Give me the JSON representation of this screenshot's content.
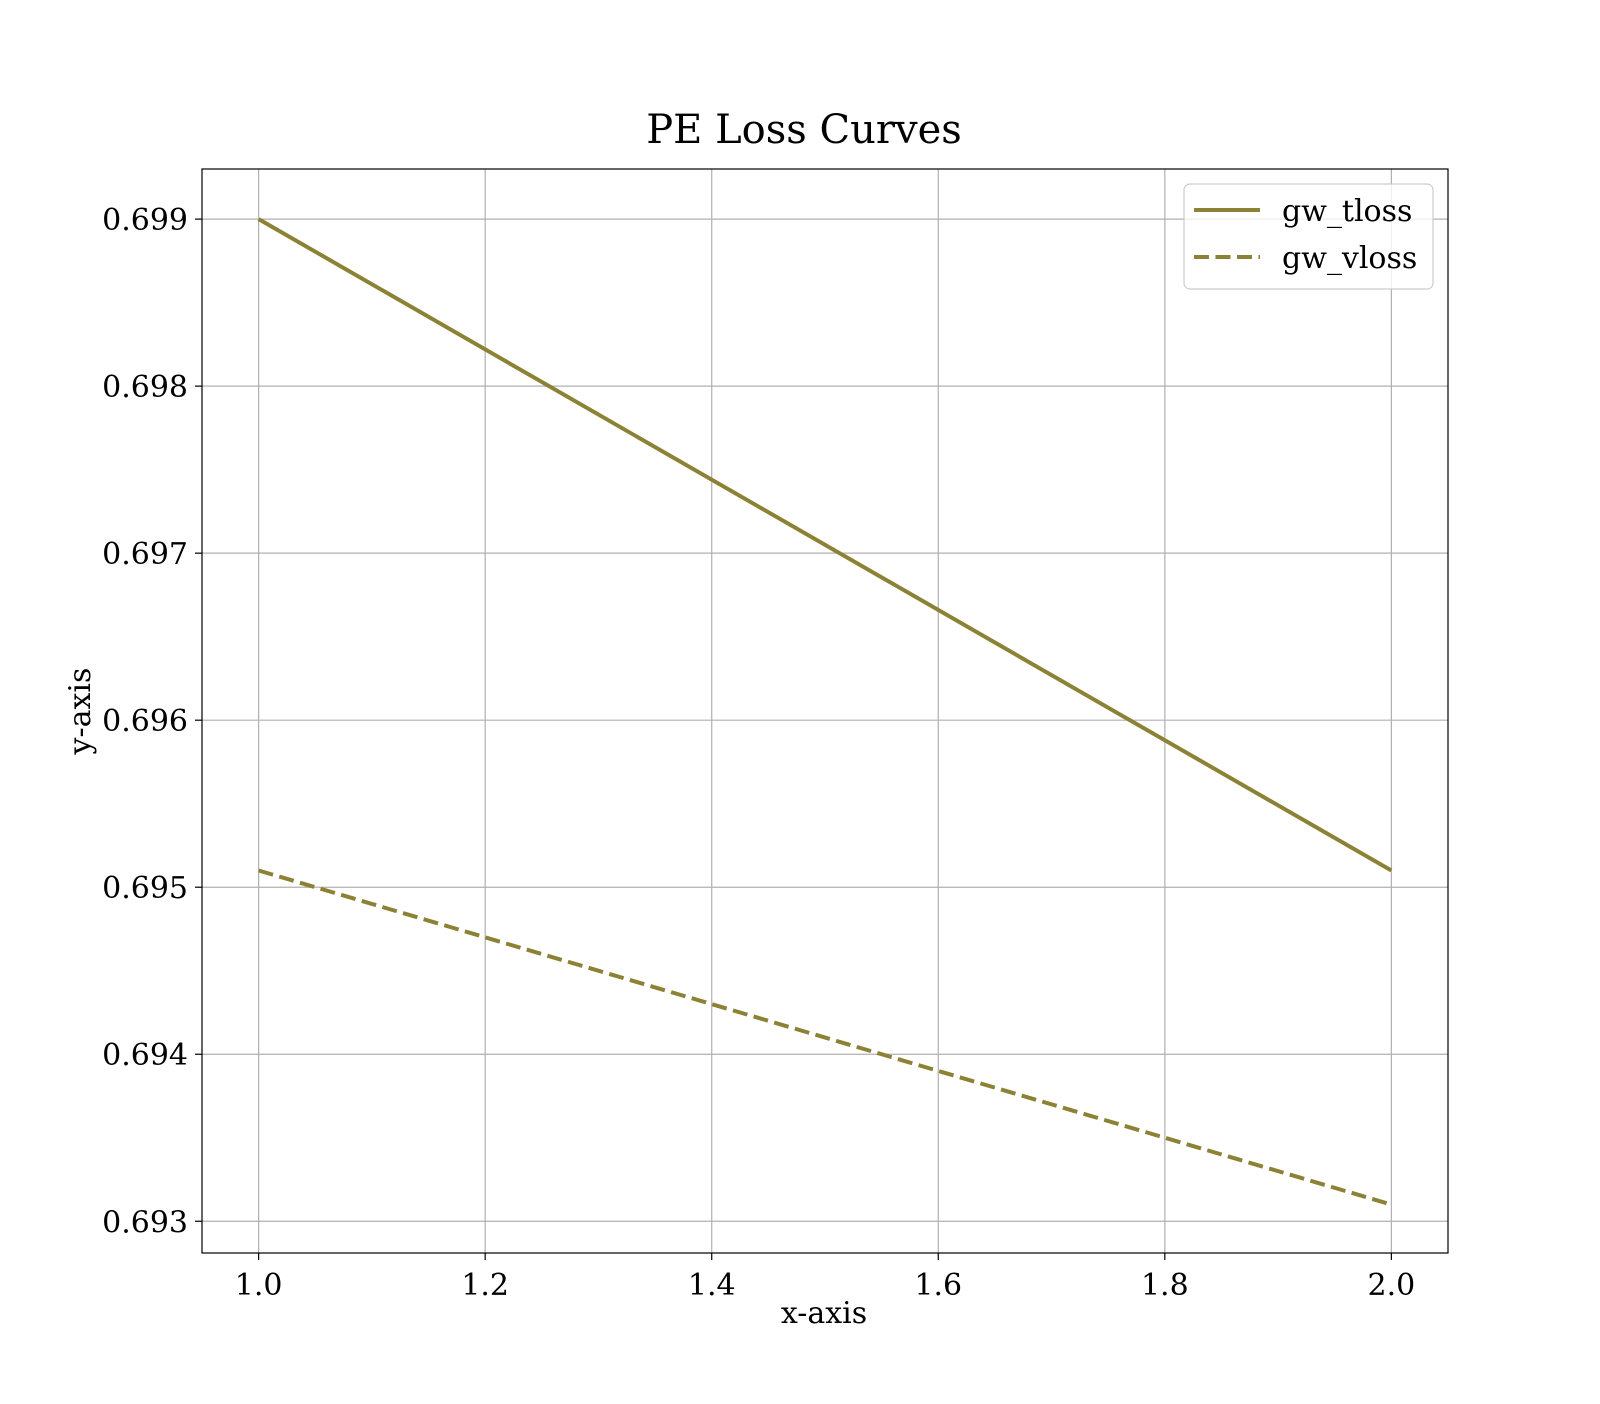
{
  "chart_data": {
    "type": "line",
    "title": "PE Loss Curves",
    "xlabel": "x-axis",
    "ylabel": "y-axis",
    "x": [
      1.0,
      2.0
    ],
    "series": [
      {
        "name": "gw_tloss",
        "values": [
          0.699,
          0.6951
        ],
        "color": "#8b8235",
        "style": "solid"
      },
      {
        "name": "gw_vloss",
        "values": [
          0.6951,
          0.6931
        ],
        "color": "#8b8235",
        "style": "dashed"
      }
    ],
    "xlim": [
      0.95,
      2.05
    ],
    "ylim": [
      0.69281,
      0.6993
    ],
    "xticks": [
      1.0,
      1.2,
      1.4,
      1.6,
      1.8,
      2.0
    ],
    "xtick_labels": [
      "1.0",
      "1.2",
      "1.4",
      "1.6",
      "1.8",
      "2.0"
    ],
    "yticks": [
      0.693,
      0.694,
      0.695,
      0.696,
      0.697,
      0.698,
      0.699
    ],
    "ytick_labels": [
      "0.693",
      "0.694",
      "0.695",
      "0.696",
      "0.697",
      "0.698",
      "0.699"
    ],
    "grid": true,
    "legend_position": "top-right"
  }
}
